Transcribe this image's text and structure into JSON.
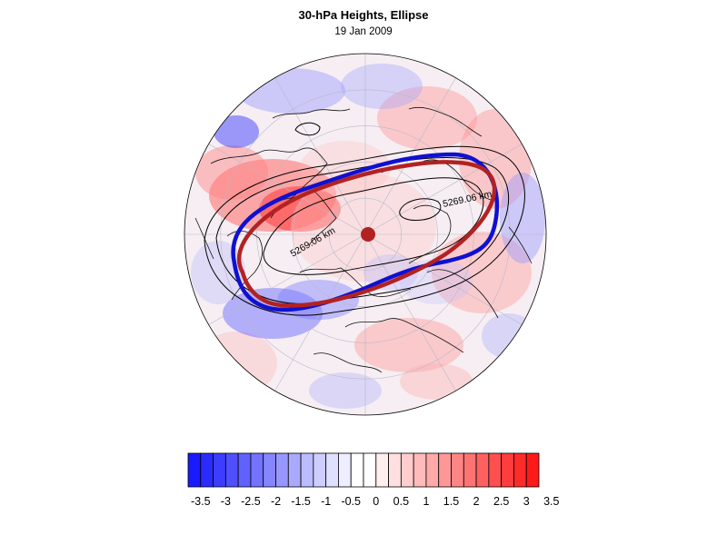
{
  "title": "30-hPa Heights, Ellipse",
  "subtitle": "19 Jan 2009",
  "map": {
    "projection": "polar stereographic (north pole)",
    "overlays": {
      "contour_label": "5269.06 km",
      "observed_ellipse_color": "#1010d0",
      "fitted_ellipse_color": "#b22222",
      "center_marker_color": "#b22222"
    }
  },
  "colorbar": {
    "tick_labels": [
      "-3.5",
      "-3",
      "-2.5",
      "-2",
      "-1.5",
      "-1",
      "-0.5",
      "0",
      "0.5",
      "1",
      "1.5",
      "2",
      "2.5",
      "3",
      "3.5"
    ],
    "colors": [
      "#1a1aff",
      "#2b2bff",
      "#3d3dff",
      "#4f4fff",
      "#6161ff",
      "#7373ff",
      "#8585ff",
      "#9797ff",
      "#a9a9ff",
      "#bbbbff",
      "#cdcdff",
      "#dfdfff",
      "#eeeeff",
      "#ffffff",
      "#ffffff",
      "#ffeeee",
      "#ffdfdf",
      "#ffcdcd",
      "#ffbbbb",
      "#ffa9a9",
      "#ff9797",
      "#ff8585",
      "#ff7373",
      "#ff6161",
      "#ff4f4f",
      "#ff3d3d",
      "#ff2b2b",
      "#ff1a1a"
    ]
  }
}
